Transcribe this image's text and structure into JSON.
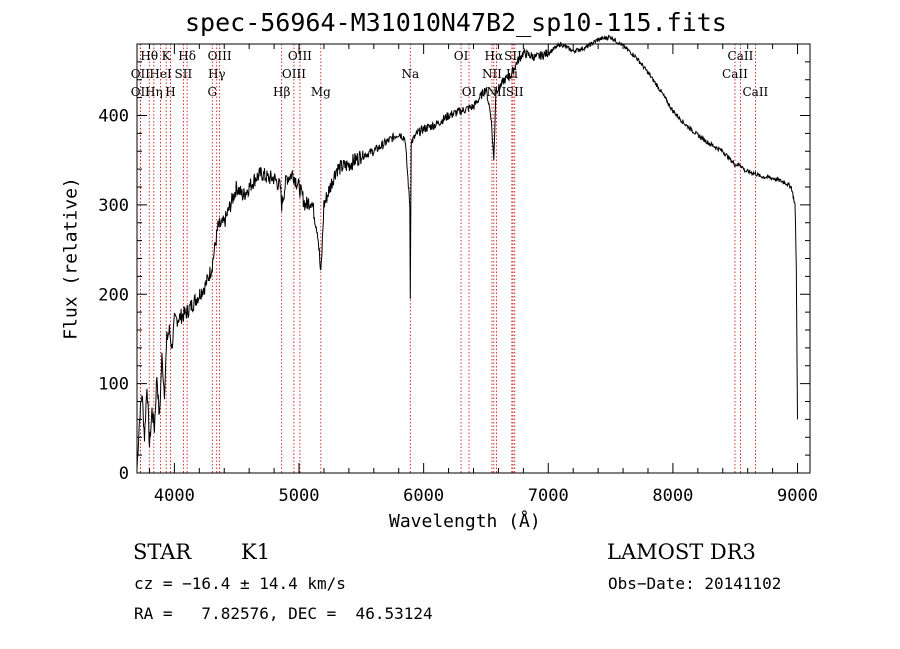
{
  "chart_data": {
    "type": "line",
    "title": "spec-56964-M31010N47B2_sp10-115.fits",
    "xlabel": "Wavelength (Å)",
    "ylabel": "Flux (relative)",
    "xlim": [
      3700,
      9100
    ],
    "ylim": [
      0,
      480
    ],
    "xticks": [
      4000,
      5000,
      6000,
      7000,
      8000,
      9000
    ],
    "yticks": [
      0,
      100,
      200,
      300,
      400
    ],
    "grid": false,
    "line_color": "#000000",
    "marker_color": "#cc0000",
    "spectrum": {
      "x": [
        3700,
        3720,
        3740,
        3760,
        3780,
        3800,
        3820,
        3840,
        3860,
        3880,
        3900,
        3920,
        3940,
        3960,
        3980,
        4000,
        4050,
        4100,
        4150,
        4200,
        4250,
        4300,
        4350,
        4400,
        4450,
        4500,
        4550,
        4600,
        4650,
        4700,
        4750,
        4800,
        4850,
        4861,
        4900,
        4950,
        5000,
        5050,
        5100,
        5150,
        5175,
        5200,
        5250,
        5300,
        5400,
        5500,
        5600,
        5700,
        5800,
        5850,
        5889,
        5893,
        5896,
        5900,
        5950,
        6000,
        6100,
        6200,
        6300,
        6400,
        6450,
        6500,
        6540,
        6563,
        6580,
        6600,
        6650,
        6700,
        6750,
        6800,
        6900,
        7000,
        7100,
        7200,
        7300,
        7400,
        7500,
        7600,
        7700,
        7800,
        7900,
        8000,
        8100,
        8200,
        8300,
        8400,
        8498,
        8542,
        8580,
        8662,
        8700,
        8800,
        8900,
        8950,
        8980,
        8990,
        9000
      ],
      "y": [
        5,
        60,
        90,
        40,
        100,
        30,
        70,
        50,
        110,
        60,
        130,
        90,
        150,
        160,
        140,
        170,
        175,
        180,
        190,
        200,
        210,
        230,
        275,
        280,
        300,
        320,
        310,
        320,
        330,
        335,
        330,
        330,
        320,
        300,
        330,
        335,
        320,
        300,
        305,
        270,
        220,
        300,
        320,
        340,
        345,
        355,
        360,
        370,
        380,
        375,
        300,
        195,
        280,
        370,
        380,
        385,
        390,
        400,
        405,
        410,
        420,
        430,
        400,
        350,
        430,
        430,
        440,
        445,
        460,
        470,
        465,
        470,
        480,
        472,
        476,
        485,
        488,
        478,
        466,
        448,
        428,
        405,
        390,
        378,
        368,
        360,
        345,
        345,
        338,
        335,
        332,
        330,
        325,
        320,
        300,
        230,
        60
      ]
    },
    "lines": [
      {
        "name": "OII",
        "wl": 3727,
        "row": 2
      },
      {
        "name": "Hθ",
        "wl": 3798,
        "row": 1
      },
      {
        "name": "OII",
        "wl": 3727,
        "row": 3
      },
      {
        "name": "Hη",
        "wl": 3835,
        "row": 3
      },
      {
        "name": "HeI",
        "wl": 3889,
        "row": 2
      },
      {
        "name": "K",
        "wl": 3934,
        "row": 1
      },
      {
        "name": "H",
        "wl": 3969,
        "row": 3
      },
      {
        "name": "SII",
        "wl": 4072,
        "row": 2
      },
      {
        "name": "Hδ",
        "wl": 4102,
        "row": 1
      },
      {
        "name": "OIII",
        "wl": 4363,
        "row": 1
      },
      {
        "name": "Hγ",
        "wl": 4340,
        "row": 2
      },
      {
        "name": "G",
        "wl": 4304,
        "row": 3
      },
      {
        "name": "Hβ",
        "wl": 4861,
        "row": 3
      },
      {
        "name": "OIII",
        "wl": 4959,
        "row": 2
      },
      {
        "name": "OIII",
        "wl": 5007,
        "row": 1
      },
      {
        "name": "Mg",
        "wl": 5175,
        "row": 3
      },
      {
        "name": "Na",
        "wl": 5893,
        "row": 2
      },
      {
        "name": "OI",
        "wl": 6300,
        "row": 1
      },
      {
        "name": "OI",
        "wl": 6364,
        "row": 3
      },
      {
        "name": "Hα",
        "wl": 6563,
        "row": 1
      },
      {
        "name": "NII",
        "wl": 6548,
        "row": 2
      },
      {
        "name": "NII",
        "wl": 6584,
        "row": 3
      },
      {
        "name": "SII",
        "wl": 6717,
        "row": 1
      },
      {
        "name": "Li",
        "wl": 6708,
        "row": 2
      },
      {
        "name": "SII",
        "wl": 6731,
        "row": 3
      },
      {
        "name": "CaII",
        "wl": 8498,
        "row": 2
      },
      {
        "name": "CaII",
        "wl": 8542,
        "row": 1
      },
      {
        "name": "CaII",
        "wl": 8662,
        "row": 3
      }
    ]
  },
  "info": {
    "object_type": "STAR",
    "subclass": "K1",
    "survey": "LAMOST DR3",
    "cz": "cz = −16.4 ± 14.4 km/s",
    "obs_date": "Obs−Date: 20141102",
    "coords": "RA =   7.82576, DEC =  46.53124"
  }
}
